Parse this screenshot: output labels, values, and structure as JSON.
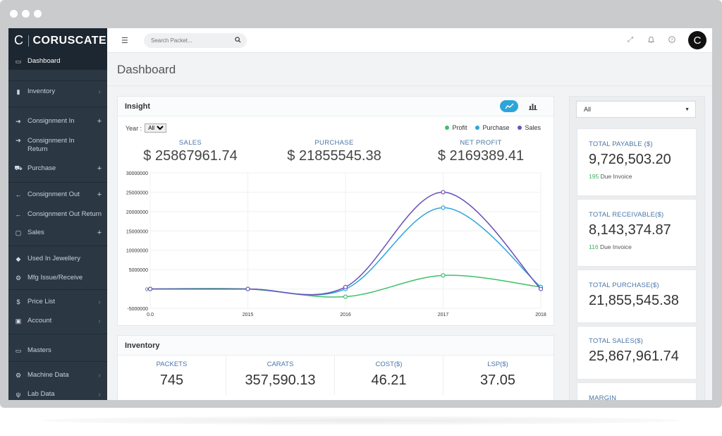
{
  "brand": {
    "name": "CORUSCATE"
  },
  "sidebar": {
    "items": [
      {
        "icon": "monitor-icon",
        "label": "Dashboard",
        "tail": ""
      },
      {
        "icon": "bar-chart-icon",
        "label": "Inventory",
        "tail": "›"
      },
      {
        "icon": "arrow-right-icon",
        "label": "Consignment In",
        "tail": "+"
      },
      {
        "icon": "arrow-right-icon",
        "label": "Consignment In Return",
        "tail": ""
      },
      {
        "icon": "cart-icon",
        "label": "Purchase",
        "tail": "+"
      },
      {
        "icon": "arrow-left-icon",
        "label": "Consignment Out",
        "tail": "+"
      },
      {
        "icon": "arrow-left-icon",
        "label": "Consignment Out Return",
        "tail": ""
      },
      {
        "icon": "bag-icon",
        "label": "Sales",
        "tail": "+"
      },
      {
        "icon": "diamond-icon",
        "label": "Used In Jewellery",
        "tail": ""
      },
      {
        "icon": "gears-icon",
        "label": "Mfg Issue/Receive",
        "tail": ""
      },
      {
        "icon": "dollar-icon",
        "label": "Price List",
        "tail": "›"
      },
      {
        "icon": "money-icon",
        "label": "Account",
        "tail": "›"
      },
      {
        "icon": "monitor-icon",
        "label": "Masters",
        "tail": ""
      },
      {
        "icon": "gears-icon",
        "label": "Machine Data",
        "tail": "›"
      },
      {
        "icon": "flask-icon",
        "label": "Lab Data",
        "tail": "›"
      }
    ]
  },
  "topbar": {
    "search_placeholder": "Search Packet..."
  },
  "page": {
    "title": "Dashboard"
  },
  "insight": {
    "title": "Insight",
    "year_label": "Year :",
    "year_value": "All",
    "legend": [
      {
        "name": "Profit",
        "color": "#3fc06a"
      },
      {
        "name": "Purchase",
        "color": "#2fa4d9"
      },
      {
        "name": "Sales",
        "color": "#6b52b8"
      }
    ],
    "stats": [
      {
        "label": "SALES",
        "value": "$ 25867961.74"
      },
      {
        "label": "PURCHASE",
        "value": "$ 21855545.38"
      },
      {
        "label": "NET PROFIT",
        "value": "$ 2169389.41"
      }
    ]
  },
  "chart_data": {
    "type": "line",
    "x_categories": [
      "0.0",
      "2015",
      "2016",
      "2017",
      "2018"
    ],
    "y_ticks": [
      "30000000",
      "25000000",
      "20000000",
      "15000000",
      "10000000",
      "5000000",
      "0",
      "-5000000"
    ],
    "ylim": [
      -5000000,
      30000000
    ],
    "series": [
      {
        "name": "Profit",
        "color": "#3fc06a",
        "values": [
          0,
          0,
          -2000000,
          3500000,
          500000
        ]
      },
      {
        "name": "Purchase",
        "color": "#2fa4d9",
        "values": [
          0,
          0,
          0,
          21000000,
          500000
        ]
      },
      {
        "name": "Sales",
        "color": "#6b52b8",
        "values": [
          0,
          0,
          500000,
          25000000,
          0
        ]
      }
    ],
    "grid": true
  },
  "filter": {
    "value": "All"
  },
  "kpis": [
    {
      "label": "TOTAL PAYABLE ($)",
      "value": "9,726,503.20",
      "count": "195",
      "sub": "Due Invoice"
    },
    {
      "label": "TOTAL RECEIVABLE($)",
      "value": "8,143,374.87",
      "count": "116",
      "sub": "Due Invoice"
    },
    {
      "label": "TOTAL PURCHASE($)",
      "value": "21,855,545.38",
      "count": "",
      "sub": ""
    },
    {
      "label": "TOTAL SALES($)",
      "value": "25,867,961.74",
      "count": "",
      "sub": ""
    },
    {
      "label": "MARGIN",
      "value": "",
      "count": "",
      "sub": ""
    }
  ],
  "inventory": {
    "title": "Inventory",
    "cells": [
      {
        "label": "PACKETS",
        "value": "745"
      },
      {
        "label": "CARATS",
        "value": "357,590.13"
      },
      {
        "label": "COST($)",
        "value": "46.21"
      },
      {
        "label": "LSP($)",
        "value": "37.05"
      }
    ]
  }
}
